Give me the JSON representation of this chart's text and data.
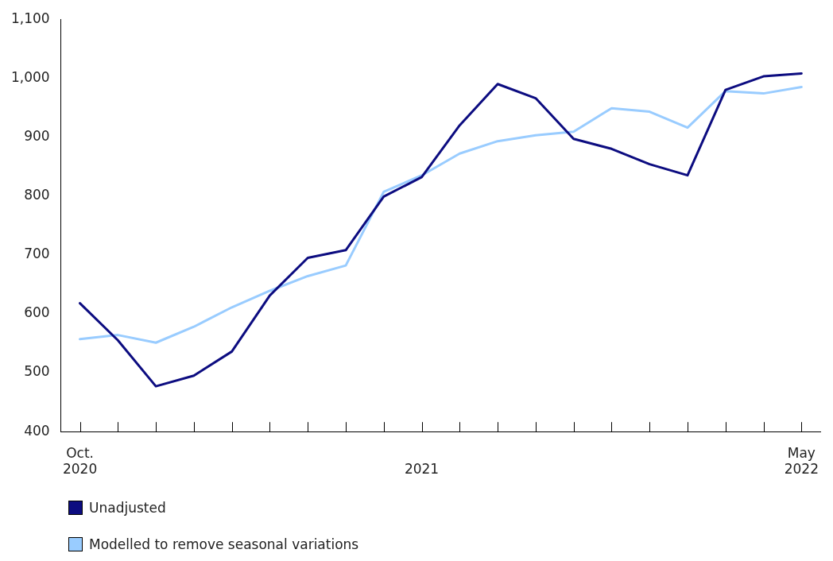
{
  "chart_data": {
    "type": "line",
    "categories": [
      "Oct.\n2020",
      null,
      null,
      null,
      null,
      null,
      null,
      null,
      null,
      "2021",
      null,
      null,
      null,
      null,
      null,
      null,
      null,
      null,
      null,
      "May\n2022"
    ],
    "series": [
      {
        "name": "Unadjusted",
        "color": "#0c0c80",
        "values": [
          618,
          555,
          477,
          495,
          536,
          631,
          695,
          708,
          799,
          832,
          920,
          990,
          966,
          897,
          880,
          854,
          835,
          980,
          1003,
          1008
        ]
      },
      {
        "name": "Modelled to remove seasonal variations",
        "color": "#99ccff",
        "values": [
          557,
          564,
          551,
          578,
          611,
          639,
          664,
          682,
          807,
          835,
          872,
          893,
          903,
          909,
          949,
          943,
          916,
          978,
          974,
          985
        ]
      }
    ],
    "ylim": [
      400,
      1100
    ],
    "yticks": [
      400,
      500,
      600,
      700,
      800,
      900,
      {
        "value": 1000,
        "label": "1,000"
      },
      {
        "value": 1100,
        "label": "1,100"
      }
    ],
    "grid": false,
    "legend": "bottom",
    "marker": "none",
    "line_style": "solid"
  }
}
